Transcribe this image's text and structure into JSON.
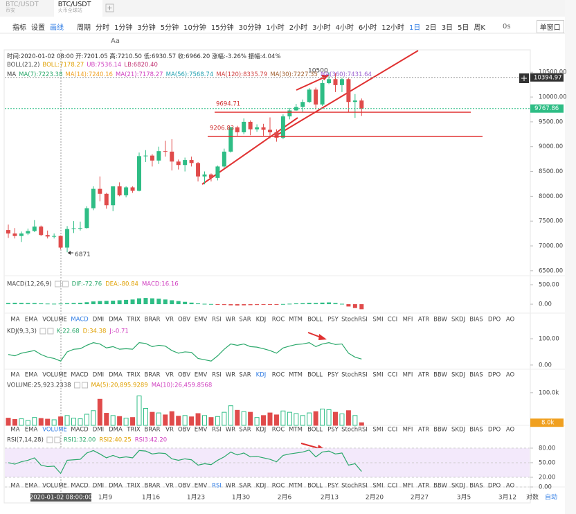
{
  "tabs": [
    {
      "title": "BTC/USDT",
      "subtitle": "币安"
    },
    {
      "title": "BTC/USDT",
      "subtitle": "火币全球站"
    }
  ],
  "toolbar": {
    "tools": [
      "指标",
      "设置",
      "画线"
    ],
    "period_label": "周期",
    "periods": [
      "分时",
      "1分钟",
      "3分钟",
      "5分钟",
      "10分钟",
      "15分钟",
      "30分钟",
      "1小时",
      "2小时",
      "3小时",
      "4小时",
      "6小时",
      "12小时",
      "1日",
      "2日",
      "3日",
      "5日",
      "周K"
    ],
    "active_period": 13,
    "timer": "0s",
    "window_mode": "单窗口",
    "text_tool": "Aa"
  },
  "info": {
    "ohlc": "时间:2020-01-02 08:00  开:7201.05  高:7210.50  低:6930.57  收:6966.20  涨幅:-3.26%  振幅:4.04%",
    "boll": [
      {
        "text": "BOLL(21,2)",
        "color": "#444"
      },
      {
        "text": "BOLL:7178.27",
        "color": "#e0a000"
      },
      {
        "text": "UB:7536.14",
        "color": "#d040c0"
      },
      {
        "text": "LB:6820.40",
        "color": "#c03070"
      }
    ],
    "ma": [
      {
        "text": "MA",
        "color": "#444"
      },
      {
        "text": "MA(7):7223.38",
        "color": "#2aa86a"
      },
      {
        "text": "MA(14):7240.16",
        "color": "#f0a020"
      },
      {
        "text": "MA(21):7178.27",
        "color": "#d040c0"
      },
      {
        "text": "MA(56):7568.74",
        "color": "#20a0b0"
      },
      {
        "text": "MA(120):8335.79",
        "color": "#d04040"
      },
      {
        "text": "MA(30):7227.35",
        "color": "#a06030"
      },
      {
        "text": "MA(360):7431.64",
        "color": "#9a60d0"
      }
    ]
  },
  "panes": {
    "main": {
      "ylim": [
        6400,
        10950
      ],
      "yticks": [
        {
          "value": 10500,
          "label": "10500.00"
        },
        {
          "value": 10000,
          "label": "10000.00"
        },
        {
          "value": 9500,
          "label": "9500.00"
        },
        {
          "value": 9000,
          "label": "9000.00"
        },
        {
          "value": 8500,
          "label": "8500.00"
        },
        {
          "value": 8000,
          "label": "8000.00"
        },
        {
          "value": 7500,
          "label": "7500.00"
        },
        {
          "value": 7000,
          "label": "7000.00"
        },
        {
          "value": 6500,
          "label": "6500.00"
        }
      ],
      "candles": [
        [
          7320,
          7430,
          7160,
          7250
        ],
        [
          7250,
          7360,
          7150,
          7200
        ],
        [
          7200,
          7290,
          7080,
          7250
        ],
        [
          7250,
          7350,
          7220,
          7300
        ],
        [
          7300,
          7520,
          7280,
          7390
        ],
        [
          7390,
          7410,
          7200,
          7220
        ],
        [
          7220,
          7310,
          7150,
          7190
        ],
        [
          7190,
          7250,
          7150,
          7200
        ],
        [
          7201,
          7210,
          6930,
          6966
        ],
        [
          6966,
          7400,
          6871,
          7340
        ],
        [
          7340,
          7500,
          7260,
          7355
        ],
        [
          7355,
          7490,
          7310,
          7360
        ],
        [
          7360,
          7800,
          7350,
          7760
        ],
        [
          7760,
          8200,
          7720,
          8150
        ],
        [
          8150,
          8400,
          7900,
          8050
        ],
        [
          8050,
          8070,
          7750,
          7820
        ],
        [
          7820,
          8200,
          7700,
          8200
        ],
        [
          8200,
          8280,
          8000,
          8020
        ],
        [
          8020,
          8200,
          7980,
          8180
        ],
        [
          8180,
          8200,
          8070,
          8110
        ],
        [
          8110,
          8880,
          8100,
          8810
        ],
        [
          8810,
          8930,
          8690,
          8820
        ],
        [
          8820,
          8850,
          8600,
          8720
        ],
        [
          8720,
          9000,
          8650,
          8910
        ],
        [
          8910,
          9120,
          8800,
          8900
        ],
        [
          8900,
          9150,
          8520,
          8700
        ],
        [
          8700,
          8740,
          8540,
          8630
        ],
        [
          8630,
          8780,
          8500,
          8730
        ],
        [
          8730,
          8800,
          8600,
          8670
        ],
        [
          8670,
          8690,
          8300,
          8400
        ],
        [
          8400,
          8500,
          8240,
          8440
        ],
        [
          8440,
          8460,
          8300,
          8370
        ],
        [
          8370,
          8620,
          8320,
          8600
        ],
        [
          8600,
          8960,
          8570,
          8900
        ],
        [
          8900,
          9400,
          8880,
          9390
        ],
        [
          9390,
          9420,
          9220,
          9290
        ],
        [
          9290,
          9570,
          9250,
          9500
        ],
        [
          9500,
          9530,
          9230,
          9350
        ],
        [
          9350,
          9450,
          9300,
          9390
        ],
        [
          9390,
          9460,
          9220,
          9340
        ],
        [
          9340,
          9590,
          9170,
          9290
        ],
        [
          9290,
          9350,
          9100,
          9180
        ],
        [
          9180,
          9650,
          9150,
          9610
        ],
        [
          9610,
          9780,
          9550,
          9730
        ],
        [
          9730,
          9860,
          9720,
          9800
        ],
        [
          9800,
          9950,
          9700,
          9900
        ],
        [
          9900,
          10180,
          9880,
          10150
        ],
        [
          10150,
          10190,
          9750,
          9850
        ],
        [
          9850,
          10350,
          9820,
          10280
        ],
        [
          10280,
          10500,
          10260,
          10360
        ],
        [
          10360,
          10480,
          10100,
          10240
        ],
        [
          10240,
          10390,
          10100,
          10360
        ],
        [
          10360,
          10380,
          9700,
          9900
        ],
        [
          9900,
          10060,
          9580,
          9930
        ],
        [
          9930,
          9970,
          9620,
          9767.86
        ]
      ],
      "high_label": 10500,
      "low_label": 6871,
      "levels": [
        9694.71,
        9206.83
      ],
      "last_price": 9767.86,
      "cursor_price": 10394.97
    },
    "macd": {
      "legend": [
        {
          "text": "MACD(12,26,9)",
          "color": "#444"
        },
        {
          "text": "DIF:-72.76",
          "color": "#2aa86a"
        },
        {
          "text": "DEA:-80.84",
          "color": "#e0a000"
        },
        {
          "text": "MACD:16.16",
          "color": "#d040c0"
        }
      ],
      "ylim": [
        -230,
        660
      ],
      "yticks": [
        {
          "value": 500,
          "label": "500.00"
        },
        {
          "value": 0,
          "label": "0.00"
        }
      ],
      "histogram": [
        30,
        35,
        32,
        30,
        28,
        20,
        15,
        12,
        16,
        25,
        30,
        35,
        50,
        70,
        80,
        85,
        90,
        100,
        110,
        120,
        150,
        160,
        150,
        140,
        120,
        100,
        80,
        60,
        40,
        20,
        10,
        5,
        -10,
        -20,
        -30,
        -35,
        -30,
        -25,
        -20,
        -15,
        -10,
        -5,
        5,
        12,
        20,
        25,
        35,
        30,
        40,
        45,
        30,
        10,
        -60,
        -100,
        -130
      ],
      "active_tab": 3
    },
    "kdj": {
      "legend": [
        {
          "text": "KDJ(9,3,3)",
          "color": "#444"
        },
        {
          "text": "K:22.68",
          "color": "#2aa86a"
        },
        {
          "text": "D:34.38",
          "color": "#e0a000"
        },
        {
          "text": "J:-0.71",
          "color": "#d040c0"
        }
      ],
      "ylim": [
        -16,
        150
      ],
      "yticks": [
        {
          "value": 100,
          "label": "100.00"
        },
        {
          "value": 0,
          "label": "0.00"
        }
      ],
      "k": [
        40,
        35,
        45,
        50,
        55,
        40,
        30,
        25,
        15,
        50,
        60,
        62,
        75,
        85,
        80,
        65,
        70,
        60,
        62,
        60,
        85,
        82,
        70,
        75,
        72,
        55,
        45,
        50,
        48,
        25,
        20,
        15,
        35,
        60,
        80,
        75,
        80,
        70,
        68,
        62,
        55,
        45,
        65,
        72,
        78,
        80,
        85,
        70,
        80,
        85,
        78,
        80,
        45,
        30,
        22.68
      ],
      "active_tab": 14
    },
    "volume": {
      "legend": [
        {
          "text": "VOLUME:25,923.2338",
          "color": "#444"
        },
        {
          "text": "MA(5):20,895.9289",
          "color": "#e0a000"
        },
        {
          "text": "MA(10):26,459.8568",
          "color": "#d040c0"
        }
      ],
      "ylim": [
        0,
        140000
      ],
      "yticks": [
        {
          "value": 100000,
          "label": "100.0k"
        }
      ],
      "last_tag": {
        "value": 8000,
        "label": "8.0k"
      },
      "values": [
        22000,
        18000,
        20000,
        15000,
        24000,
        21000,
        19000,
        17000,
        26000,
        30000,
        22000,
        20000,
        34000,
        45000,
        80000,
        37000,
        30000,
        27000,
        22000,
        24000,
        90000,
        52000,
        40000,
        38000,
        32000,
        42000,
        28000,
        30000,
        26000,
        36000,
        30000,
        24000,
        27000,
        40000,
        60000,
        46000,
        42000,
        40000,
        24000,
        30000,
        38000,
        32000,
        44000,
        40000,
        36000,
        30000,
        38000,
        42000,
        50000,
        48000,
        40000,
        35000,
        45000,
        30000,
        8000
      ],
      "active_tab": 2
    },
    "rsi": {
      "legend": [
        {
          "text": "RSI(7,14,28)",
          "color": "#444"
        },
        {
          "text": "RSI1:32.00",
          "color": "#2aa86a"
        },
        {
          "text": "RSI2:40.25",
          "color": "#e0a000"
        },
        {
          "text": "RSI3:42.20",
          "color": "#d040c0"
        }
      ],
      "ylim": [
        0,
        107
      ],
      "yticks": [
        {
          "value": 80,
          "label": "80.00"
        },
        {
          "value": 50,
          "label": "50.00"
        },
        {
          "value": 20,
          "label": "20.00"
        },
        {
          "value": 0,
          "label": "0.00"
        }
      ],
      "rsi1": [
        50,
        47,
        52,
        55,
        60,
        45,
        42,
        43,
        28,
        55,
        56,
        57,
        70,
        75,
        68,
        60,
        65,
        60,
        62,
        60,
        75,
        74,
        68,
        70,
        69,
        58,
        55,
        58,
        56,
        45,
        48,
        46,
        55,
        62,
        72,
        66,
        70,
        62,
        63,
        60,
        57,
        52,
        65,
        68,
        70,
        72,
        76,
        62,
        72,
        74,
        68,
        70,
        45,
        48,
        32
      ],
      "active_tab": 11
    }
  },
  "indicator_tabs": [
    "MA",
    "EMA",
    "VOLUME",
    "MACD",
    "DMI",
    "DMA",
    "TRIX",
    "BRAR",
    "VR",
    "OBV",
    "EMV",
    "RSI",
    "WR",
    "SAR",
    "KDJ",
    "ROC",
    "MTM",
    "BOLL",
    "PSY",
    "StochRSI",
    "SMI",
    "CCI",
    "MFI",
    "ATR",
    "BBW",
    "SKDJ",
    "BIAS",
    "DPO",
    "AO"
  ],
  "xaxis": {
    "cursor": "2020-01-02 08:00:00",
    "labels": [
      "1月9",
      "1月16",
      "1月23",
      "1月30",
      "2月6",
      "2月13",
      "2月20",
      "2月27",
      "3月5",
      "3月12"
    ],
    "modes": [
      "对数",
      "自动"
    ]
  }
}
